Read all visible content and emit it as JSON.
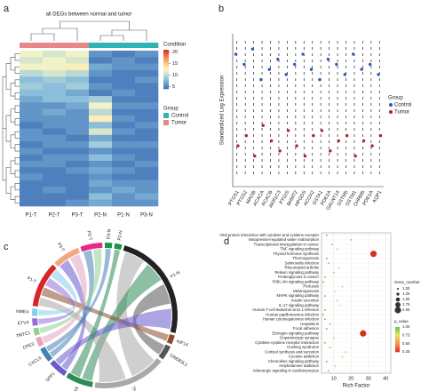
{
  "chart_data": [
    {
      "type": "heatmap",
      "label": "a",
      "title": "all DEGs between normal and tumor",
      "categories": [
        "P1-T",
        "P2-T",
        "P3-T",
        "P2-N",
        "P1-N",
        "P3-N"
      ],
      "groups": [
        "Tumor",
        "Tumor",
        "Tumor",
        "Control",
        "Control",
        "Control"
      ],
      "values": [
        [
          12,
          11,
          12,
          6,
          5,
          6
        ],
        [
          11,
          12,
          11,
          5,
          6,
          5
        ],
        [
          12,
          12,
          13,
          7,
          6,
          6
        ],
        [
          10,
          11,
          10,
          6,
          5,
          5
        ],
        [
          8,
          9,
          8,
          5,
          5,
          6
        ],
        [
          9,
          8,
          9,
          6,
          5,
          5
        ],
        [
          8,
          8,
          7,
          5,
          6,
          5
        ],
        [
          7,
          8,
          8,
          9,
          5,
          5
        ],
        [
          6,
          6,
          7,
          12,
          6,
          6
        ],
        [
          6,
          7,
          6,
          10,
          5,
          5
        ],
        [
          6,
          6,
          6,
          13,
          6,
          5
        ],
        [
          5,
          6,
          6,
          8,
          5,
          6
        ],
        [
          6,
          5,
          6,
          11,
          6,
          5
        ],
        [
          6,
          6,
          5,
          7,
          5,
          5
        ],
        [
          5,
          6,
          6,
          9,
          6,
          6
        ],
        [
          6,
          5,
          5,
          6,
          5,
          5
        ],
        [
          5,
          6,
          6,
          8,
          6,
          5
        ],
        [
          6,
          6,
          5,
          6,
          5,
          6
        ],
        [
          5,
          5,
          6,
          7,
          6,
          5
        ],
        [
          6,
          5,
          5,
          6,
          5,
          5
        ],
        [
          5,
          5,
          5,
          7,
          6,
          6
        ],
        [
          5,
          6,
          5,
          6,
          7,
          6
        ],
        [
          5,
          5,
          5,
          8,
          6,
          7
        ],
        [
          5,
          5,
          6,
          7,
          6,
          6
        ]
      ],
      "colorbar": {
        "title": "Condition",
        "lim": [
          4,
          21
        ],
        "ticks": [
          20,
          15,
          10,
          5
        ]
      },
      "legend": {
        "title": "Group",
        "entries": [
          {
            "name": "Control",
            "color": "#2fb4b6"
          },
          {
            "name": "Tumor",
            "color": "#e8878b"
          }
        ]
      }
    },
    {
      "type": "dot",
      "label": "b",
      "ylabel": "Standardized Log Expression",
      "categories": [
        "PTGS1",
        "PTGS2",
        "MAOB",
        "ACACA",
        "ACACB",
        "AKR1C3",
        "PTGIS",
        "BHMT2",
        "HPGDS",
        "ACOX2",
        "GSTA1",
        "PDE2A",
        "GALNT14",
        "GSTM5",
        "GSTM1",
        "CHRM5",
        "PDE1A",
        "AQP1"
      ],
      "series": [
        {
          "name": "Control",
          "color": "#2b5cb8",
          "values": [
            1.1,
            0.9,
            1.2,
            0.6,
            0.8,
            1.0,
            0.7,
            0.9,
            1.1,
            0.8,
            0.6,
            1.0,
            0.9,
            0.7,
            1.1,
            0.8,
            0.9,
            0.7
          ]
        },
        {
          "name": "Tumor",
          "color": "#a52a2a",
          "values": [
            -0.7,
            -0.5,
            -0.9,
            -0.3,
            -0.6,
            -0.8,
            -0.4,
            -0.7,
            -0.9,
            -0.5,
            -0.4,
            -0.8,
            -0.6,
            -0.5,
            -0.9,
            -0.6,
            -0.7,
            -0.5
          ]
        }
      ],
      "ylim": [
        -1.5,
        1.5
      ],
      "legend": {
        "title": "Group"
      }
    },
    {
      "type": "chord",
      "label": "c",
      "nodes": [
        {
          "name": "P3-N",
          "value": 4,
          "color": "#1a9641",
          "text_color": "#1a9641"
        },
        {
          "name": "P2-N",
          "value": 4,
          "color": "#1a9641",
          "text_color": "#1a9641"
        },
        {
          "name": "P1-N",
          "value": 60,
          "color": "#222222",
          "text_color": "#1a9641"
        },
        {
          "name": "KIF14",
          "value": 5,
          "color": "#8b4a2b",
          "text_color": "#222222"
        },
        {
          "name": "CREB3L1",
          "value": 8,
          "color": "#555555",
          "text_color": "#222222"
        },
        {
          "name": "TNC",
          "value": 40,
          "color": "#a8a8a8",
          "text_color": "#222222"
        },
        {
          "name": "KLK6",
          "value": 15,
          "color": "#2e8b57",
          "text_color": "#222222"
        },
        {
          "name": "SPP1",
          "value": 10,
          "color": "#6a5acd",
          "text_color": "#222222"
        },
        {
          "name": "CXCL5",
          "value": 8,
          "color": "#4682b4",
          "text_color": "#222222"
        },
        {
          "name": "CPE3",
          "value": 5,
          "color": "#e6a3c0",
          "text_color": "#222222"
        },
        {
          "name": "TMTC1",
          "value": 4,
          "color": "#8fd18f",
          "text_color": "#222222"
        },
        {
          "name": "ETV4",
          "value": 4,
          "color": "#9370db",
          "text_color": "#222222"
        },
        {
          "name": "NME4",
          "value": 4,
          "color": "#87ceeb",
          "text_color": "#222222"
        },
        {
          "name": "P1-T",
          "value": 25,
          "color": "#d62728",
          "text_color": "#d62728"
        },
        {
          "name": "P3-T",
          "value": 15,
          "color": "#f4a582",
          "text_color": "#d62728"
        },
        {
          "name": "P2-T",
          "value": 12,
          "color": "#e7298a",
          "text_color": "#d62728"
        }
      ],
      "links": [
        [
          2,
          5
        ],
        [
          2,
          6
        ],
        [
          2,
          4
        ],
        [
          13,
          5
        ],
        [
          13,
          3
        ],
        [
          14,
          7
        ],
        [
          15,
          8
        ],
        [
          2,
          7
        ],
        [
          1,
          6
        ],
        [
          0,
          8
        ],
        [
          13,
          11
        ],
        [
          14,
          9
        ],
        [
          15,
          10
        ],
        [
          13,
          12
        ]
      ]
    },
    {
      "type": "bubble",
      "label": "d",
      "xlabel": "Rich Factor",
      "categories": [
        "Viral protein interaction with cytokine and cytokine receptor",
        "Vasopressin-regulated water reabsorption",
        "Transcriptional misregulation in cancer",
        "TNF signaling pathway",
        "Thyroid hormone synthesis",
        "Thermogenesis",
        "Salmonella infection",
        "Rheumatoid arthritis",
        "Relaxin signaling pathway",
        "Proteoglycans in cancer",
        "PI3K-Akt signaling pathway",
        "Pertussis",
        "Melanogenesis",
        "MAPK signaling pathway",
        "Insulin secretion",
        "IL-17 signaling pathway",
        "Human T-cell leukemia virus 1 infection",
        "Human papillomavirus infection",
        "Human cytomegalovirus infection",
        "Hepatitis B",
        "Focal adhesion",
        "Estrogen signaling pathway",
        "Dopaminergic synapse",
        "Cytokine-cytokine receptor interaction",
        "Cushing syndrome",
        "Cortisol synthesis and secretion",
        "Cocaine addiction",
        "Chemokine signaling pathway",
        "Amphetamine addiction",
        "Adrenergic signaling in cardiomyocytes"
      ],
      "x": [
        6,
        20,
        9,
        12,
        33,
        6,
        7,
        13,
        10,
        5,
        4,
        15,
        11,
        5,
        12,
        14,
        5,
        4,
        5,
        8,
        6,
        27,
        10,
        5,
        8,
        17,
        15,
        6,
        11,
        7
      ],
      "sizes": [
        1,
        1,
        1,
        1,
        2,
        1,
        1,
        1,
        1,
        1,
        1,
        1,
        1,
        1,
        1,
        1,
        1,
        1,
        1,
        1,
        1,
        2,
        1,
        1,
        1,
        1,
        1,
        1,
        1,
        1
      ],
      "p_values": [
        0.95,
        0.6,
        0.9,
        0.8,
        0.25,
        0.95,
        0.9,
        0.75,
        0.85,
        0.95,
        0.95,
        0.7,
        0.8,
        0.95,
        0.8,
        0.75,
        0.95,
        0.95,
        0.95,
        0.9,
        0.95,
        0.25,
        0.85,
        0.95,
        0.9,
        0.65,
        0.7,
        0.95,
        0.8,
        0.9
      ],
      "xlim": [
        3,
        43
      ],
      "xticks": [
        10,
        20,
        30,
        40
      ],
      "size_legend": {
        "title": "Gene_number",
        "ticks": [
          {
            "value": 1,
            "label": "1.00"
          },
          {
            "value": 1.25,
            "label": "1.25"
          },
          {
            "value": 1.5,
            "label": "1.50"
          },
          {
            "value": 1.75,
            "label": "1.75"
          },
          {
            "value": 2,
            "label": "2.00"
          }
        ]
      },
      "color_legend": {
        "title": "p_value",
        "ticks": [
          {
            "value": 1,
            "label": "1.00"
          },
          {
            "value": 0.75,
            "label": "0.75"
          },
          {
            "value": 0.5,
            "label": "0.50"
          },
          {
            "value": 0.25,
            "label": "0.25"
          }
        ]
      }
    }
  ]
}
